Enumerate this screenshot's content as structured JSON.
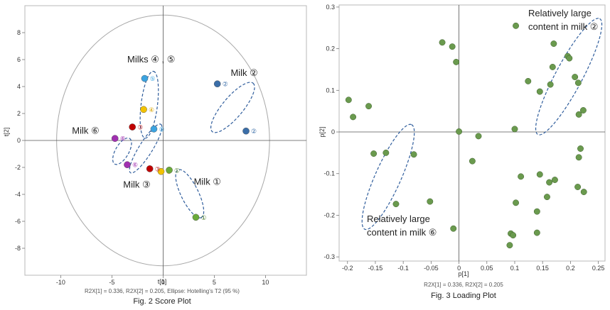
{
  "colors": {
    "frame": "#b8b8b8",
    "ellipse": "#a8a8a8",
    "dash": "#2f5d9c",
    "loading_point": "#6a9a4e"
  },
  "chart_data": [
    {
      "type": "scatter",
      "title": "Fig. 2  Score Plot",
      "xlabel": "t[1]",
      "ylabel": "t[2]",
      "xlim": [
        -13.5,
        14
      ],
      "ylim": [
        -10,
        10
      ],
      "xticks": [
        "-10",
        "-5",
        "0",
        "5",
        "10"
      ],
      "xtick_values": [
        -10,
        -5,
        0,
        5,
        10
      ],
      "yticks": [
        "8",
        "6",
        "4",
        "2",
        "0",
        "-2",
        "-4",
        "-6",
        "-8"
      ],
      "ytick_values": [
        8,
        6,
        4,
        2,
        0,
        -2,
        -4,
        -6,
        -8
      ],
      "footnote": "R2X[1] = 0.336, R2X[2] = 0.205, Ellipse: Hotelling's T2 (95 %)",
      "hotelling_ellipse": {
        "a": 10.4,
        "b": 9.3
      },
      "points": [
        {
          "x": 5.3,
          "y": 4.2,
          "color": "#3b6ea8",
          "label": "②",
          "label_color": "#3b6ea8"
        },
        {
          "x": 8.1,
          "y": 0.7,
          "color": "#3b6ea8",
          "label": "②",
          "label_color": "#3b6ea8"
        },
        {
          "x": -1.8,
          "y": 4.6,
          "color": "#3ba3e0",
          "label": "⑤",
          "label_color": "#3ba3e0"
        },
        {
          "x": -0.9,
          "y": 0.85,
          "color": "#3ba3e0",
          "label": "⑤",
          "label_color": "#3ba3e0"
        },
        {
          "x": -1.9,
          "y": 2.3,
          "color": "#f2c200",
          "label": "④",
          "label_color": "#d9a400"
        },
        {
          "x": -0.2,
          "y": -2.3,
          "color": "#f2c200",
          "label": "④",
          "label_color": "#d9a400"
        },
        {
          "x": -3.0,
          "y": 1.0,
          "color": "#c00000",
          "label": "③",
          "label_color": "#c03030"
        },
        {
          "x": -1.3,
          "y": -2.1,
          "color": "#c00000",
          "label": "③",
          "label_color": "#c03030"
        },
        {
          "x": -4.7,
          "y": 0.15,
          "color": "#a030b0",
          "label": "⑥",
          "label_color": "#a030b0"
        },
        {
          "x": -3.5,
          "y": -1.8,
          "color": "#a030b0",
          "label": "⑥",
          "label_color": "#a030b0"
        },
        {
          "x": 0.6,
          "y": -2.2,
          "color": "#6aaa3a",
          "label": "①",
          "label_color": "#4a7a2a"
        },
        {
          "x": 3.2,
          "y": -5.7,
          "color": "#6aaa3a",
          "label": "①",
          "label_color": "#4a7a2a"
        }
      ],
      "group_labels": [
        {
          "text": "Milk ②",
          "x": 6.6,
          "y": 4.8
        },
        {
          "text": "Milks ④ , ⑤",
          "x": -3.5,
          "y": 5.8
        },
        {
          "text": "Milk ⑥",
          "x": -8.9,
          "y": 0.5
        },
        {
          "text": "Milk ③",
          "x": -3.9,
          "y": -3.5
        },
        {
          "text": "Milk ①",
          "x": 3.0,
          "y": -3.3
        }
      ],
      "dashed_ellipses": [
        {
          "cx": 6.8,
          "cy": 2.45,
          "rx": 3.1,
          "ry": 1.0,
          "angle": -50
        },
        {
          "cx": -1.35,
          "cy": 2.65,
          "rx": 3.3,
          "ry": 0.8,
          "angle": -83
        },
        {
          "cx": -1.7,
          "cy": -0.6,
          "rx": 2.8,
          "ry": 0.65,
          "angle": -58
        },
        {
          "cx": -4.0,
          "cy": -0.8,
          "rx": 1.45,
          "ry": 0.65,
          "angle": -60
        },
        {
          "cx": 2.6,
          "cy": -3.95,
          "rx": 2.6,
          "ry": 0.85,
          "angle": 64
        }
      ]
    },
    {
      "type": "scatter",
      "title": "Fig. 3  Loading Plot",
      "xlabel": "p[1]",
      "ylabel": "p[2]",
      "xlim": [
        -0.215,
        0.262
      ],
      "ylim": [
        -0.31,
        0.305
      ],
      "xticks": [
        "-0.2",
        "-0.15",
        "-0.1",
        "-0.05",
        "0",
        "0.05",
        "0.1",
        "0.15",
        "0.2",
        "0.25"
      ],
      "xtick_values": [
        -0.2,
        -0.15,
        -0.1,
        -0.05,
        0,
        0.05,
        0.1,
        0.15,
        0.2,
        0.25
      ],
      "yticks": [
        "0.3",
        "0.2",
        "0.1",
        "0",
        "-0.1",
        "-0.2",
        "-0.3"
      ],
      "ytick_values": [
        0.3,
        0.2,
        0.1,
        0,
        -0.1,
        -0.2,
        -0.3
      ],
      "footnote": "R2X[1] = 0.336, R2X[2] = 0.205",
      "points": [
        {
          "x": -0.198,
          "y": 0.077
        },
        {
          "x": -0.19,
          "y": 0.036
        },
        {
          "x": -0.162,
          "y": 0.062
        },
        {
          "x": -0.03,
          "y": 0.215
        },
        {
          "x": -0.012,
          "y": 0.205
        },
        {
          "x": -0.005,
          "y": 0.168
        },
        {
          "x": 0.102,
          "y": 0.255
        },
        {
          "x": 0.0,
          "y": 0.001
        },
        {
          "x": 0.035,
          "y": -0.01
        },
        {
          "x": 0.1,
          "y": 0.007
        },
        {
          "x": -0.153,
          "y": -0.052
        },
        {
          "x": -0.131,
          "y": -0.05
        },
        {
          "x": -0.081,
          "y": -0.054
        },
        {
          "x": -0.113,
          "y": -0.173
        },
        {
          "x": -0.052,
          "y": -0.167
        },
        {
          "x": 0.024,
          "y": -0.07
        },
        {
          "x": -0.01,
          "y": -0.232
        },
        {
          "x": 0.124,
          "y": 0.122
        },
        {
          "x": 0.145,
          "y": 0.097
        },
        {
          "x": 0.164,
          "y": 0.114
        },
        {
          "x": 0.168,
          "y": 0.156
        },
        {
          "x": 0.17,
          "y": 0.212
        },
        {
          "x": 0.195,
          "y": 0.182
        },
        {
          "x": 0.198,
          "y": 0.177
        },
        {
          "x": 0.208,
          "y": 0.132
        },
        {
          "x": 0.214,
          "y": 0.118
        },
        {
          "x": 0.215,
          "y": 0.042
        },
        {
          "x": 0.223,
          "y": 0.052
        },
        {
          "x": 0.111,
          "y": -0.107
        },
        {
          "x": 0.145,
          "y": -0.102
        },
        {
          "x": 0.162,
          "y": -0.121
        },
        {
          "x": 0.172,
          "y": -0.115
        },
        {
          "x": 0.158,
          "y": -0.156
        },
        {
          "x": 0.102,
          "y": -0.17
        },
        {
          "x": 0.14,
          "y": -0.191
        },
        {
          "x": 0.093,
          "y": -0.244
        },
        {
          "x": 0.097,
          "y": -0.248
        },
        {
          "x": 0.14,
          "y": -0.242
        },
        {
          "x": 0.091,
          "y": -0.272
        },
        {
          "x": 0.218,
          "y": -0.04
        },
        {
          "x": 0.215,
          "y": -0.061
        },
        {
          "x": 0.213,
          "y": -0.132
        },
        {
          "x": 0.224,
          "y": -0.144
        }
      ],
      "annotations": [
        {
          "lines": [
            "Relatively large",
            "content in milk ②"
          ]
        },
        {
          "lines": [
            "Relatively large",
            "content in milk ⑥"
          ]
        }
      ],
      "dashed_ellipses": [
        {
          "cx": -0.127,
          "cy": -0.108,
          "rx": 0.103,
          "ry": 0.023,
          "angle": -66
        },
        {
          "cx": 0.197,
          "cy": 0.133,
          "rx": 0.118,
          "ry": 0.024,
          "angle": -62
        }
      ]
    }
  ]
}
